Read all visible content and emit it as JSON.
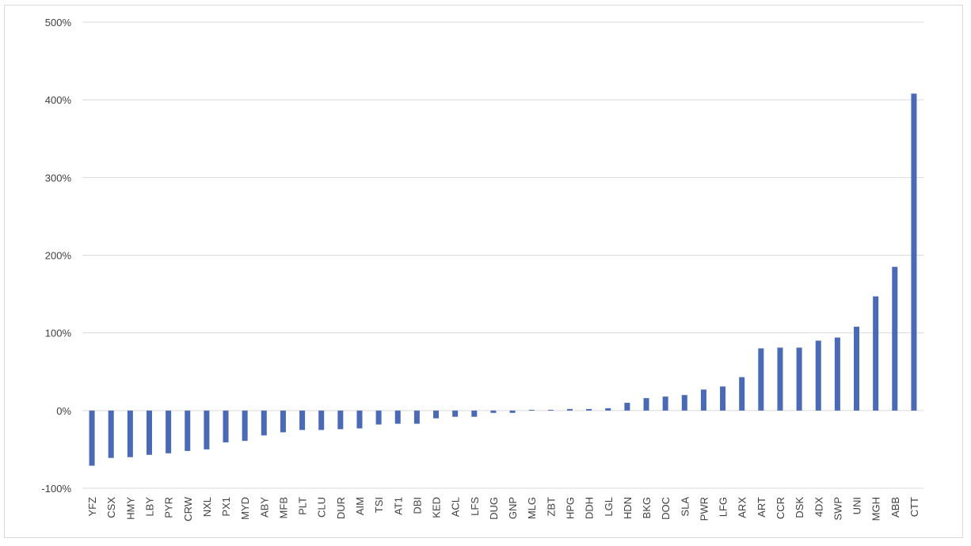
{
  "chart_data": {
    "type": "bar",
    "title": "",
    "xlabel": "",
    "ylabel": "",
    "ylim": [
      -1.0,
      5.0
    ],
    "y_ticks": [
      {
        "value": 5.0,
        "label": "500%"
      },
      {
        "value": 4.0,
        "label": "400%"
      },
      {
        "value": 3.0,
        "label": "300%"
      },
      {
        "value": 2.0,
        "label": "200%"
      },
      {
        "value": 1.0,
        "label": "100%"
      },
      {
        "value": 0.0,
        "label": "0%"
      },
      {
        "value": -1.0,
        "label": "-100%"
      }
    ],
    "grid": true,
    "legend": "none",
    "bar_color": "#4A6AB5",
    "categories": [
      "YFZ",
      "CSX",
      "HMY",
      "LBY",
      "PYR",
      "CRW",
      "NXL",
      "PX1",
      "MYD",
      "ABY",
      "MFB",
      "PLT",
      "CLU",
      "DUR",
      "AIM",
      "TSI",
      "AT1",
      "DBI",
      "KED",
      "ACL",
      "LFS",
      "DUG",
      "GNP",
      "MLG",
      "ZBT",
      "HPG",
      "DDH",
      "LGL",
      "HDN",
      "BKG",
      "DOC",
      "SLA",
      "PWR",
      "LFG",
      "ARX",
      "ART",
      "CCR",
      "DSK",
      "4DX",
      "SWP",
      "UNI",
      "MGH",
      "ABB",
      "CTT"
    ],
    "values": [
      -0.71,
      -0.61,
      -0.6,
      -0.57,
      -0.55,
      -0.52,
      -0.5,
      -0.41,
      -0.39,
      -0.32,
      -0.28,
      -0.25,
      -0.25,
      -0.24,
      -0.23,
      -0.18,
      -0.17,
      -0.17,
      -0.1,
      -0.08,
      -0.08,
      -0.03,
      -0.03,
      0.01,
      0.01,
      0.02,
      0.02,
      0.03,
      0.1,
      0.16,
      0.18,
      0.2,
      0.27,
      0.31,
      0.43,
      0.8,
      0.81,
      0.81,
      0.9,
      0.94,
      1.08,
      1.47,
      1.85,
      4.08
    ]
  }
}
